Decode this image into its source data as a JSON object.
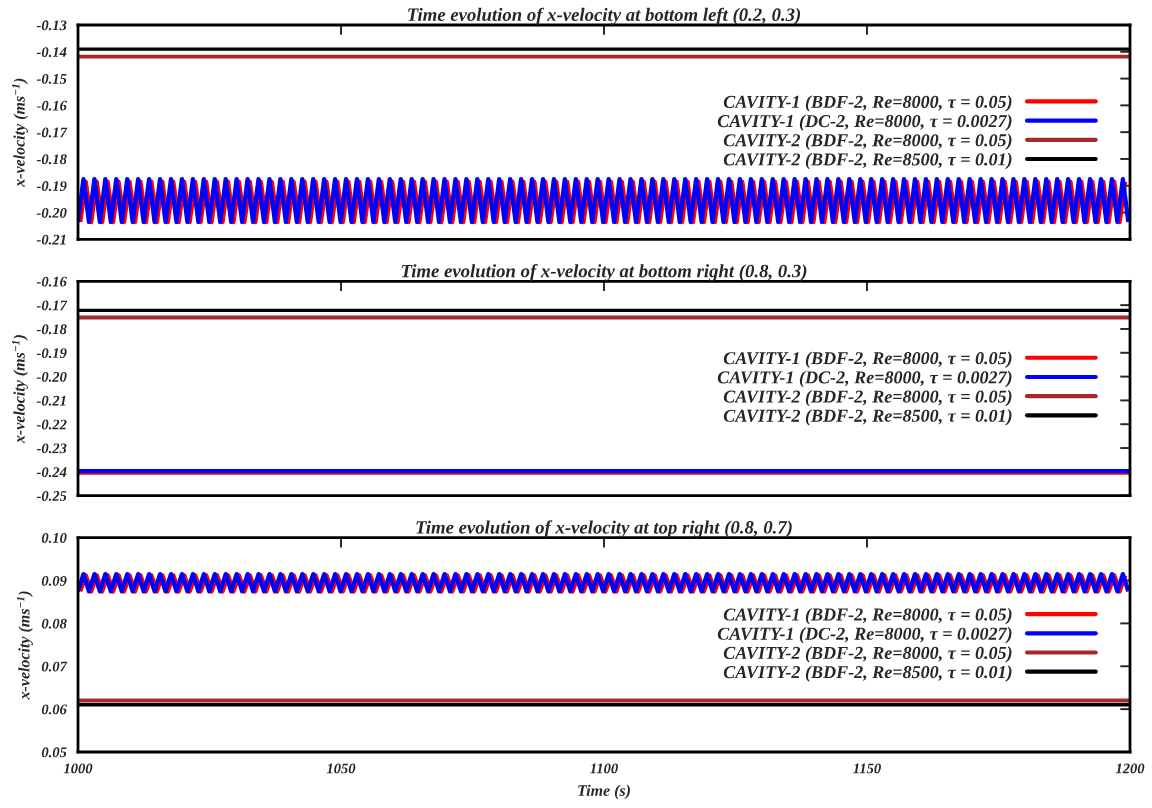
{
  "chart_data": [
    {
      "type": "line",
      "title": "Time evolution of x-velocity at bottom left (0.2, 0.3)",
      "ylabel": "x-velocity (ms$^{−1}$)",
      "xlim": [
        1000,
        1200
      ],
      "xticks": [
        1000,
        1050,
        1100,
        1150,
        1200
      ],
      "ylim": [
        -0.21,
        -0.13
      ],
      "yticks": [
        {
          "value": -0.21,
          "label": "-0.21"
        },
        {
          "value": -0.2,
          "label": "-0.20"
        },
        {
          "value": -0.19,
          "label": "-0.19"
        },
        {
          "value": -0.18,
          "label": "-0.18"
        },
        {
          "value": -0.17,
          "label": "-0.17"
        },
        {
          "value": -0.16,
          "label": "-0.16"
        },
        {
          "value": -0.15,
          "label": "-0.15"
        },
        {
          "value": -0.14,
          "label": "-0.14"
        },
        {
          "value": -0.13,
          "label": "-0.13"
        }
      ],
      "tick_labels": "y",
      "grid": false,
      "legend": "right",
      "series": [
        {
          "name": "CAVITY-1 (BDF-2, Re=8000, τ = 0.05)",
          "color": "#ff0000",
          "x": [
            1000.4,
            1001.44,
            1002.48,
            1003.52,
            1004.56,
            1005.6,
            1006.64,
            1007.68,
            1008.72,
            1009.76,
            1010.8,
            1011.84,
            1012.88,
            1013.92,
            1014.96,
            1016,
            1017.04,
            1018.08,
            1019.12,
            1020.16,
            1021.2,
            1022.24,
            1023.28,
            1024.32,
            1025.36,
            1026.4,
            1027.44,
            1028.48,
            1029.52,
            1030.56,
            1031.6,
            1032.64,
            1033.68,
            1034.72,
            1035.76,
            1036.8,
            1037.84,
            1038.88,
            1039.92,
            1040.96,
            1042,
            1043.04,
            1044.08,
            1045.12,
            1046.16,
            1047.2,
            1048.24,
            1049.28,
            1050.32,
            1051.36,
            1052.4,
            1053.44,
            1054.48,
            1055.52,
            1056.56,
            1057.6,
            1058.64,
            1059.68,
            1060.72,
            1061.76,
            1062.8,
            1063.84,
            1064.88,
            1065.92,
            1066.96,
            1068,
            1069.04,
            1070.08,
            1071.12,
            1072.16,
            1073.2,
            1074.24,
            1075.28,
            1076.32,
            1077.36,
            1078.4,
            1079.44,
            1080.48,
            1081.52,
            1082.56,
            1083.6,
            1084.64,
            1085.68,
            1086.72,
            1087.76,
            1088.8,
            1089.84,
            1090.88,
            1091.92,
            1092.96,
            1094,
            1095.04,
            1096.08,
            1097.12,
            1098.16,
            1099.2,
            1100.24,
            1101.28,
            1102.32,
            1103.36,
            1104.4,
            1105.44,
            1106.48,
            1107.52,
            1108.56,
            1109.6,
            1110.64,
            1111.68,
            1112.72,
            1113.76,
            1114.8,
            1115.84,
            1116.88,
            1117.92,
            1118.96,
            1120,
            1121.04,
            1122.08,
            1123.12,
            1124.16,
            1125.2,
            1126.24,
            1127.28,
            1128.32,
            1129.36,
            1130.4,
            1131.44,
            1132.48,
            1133.52,
            1134.56,
            1135.6,
            1136.64,
            1137.68,
            1138.72,
            1139.76,
            1140.8,
            1141.84,
            1142.88,
            1143.92,
            1144.96,
            1146,
            1147.04,
            1148.08,
            1149.12,
            1150.16,
            1151.2,
            1152.24,
            1153.28,
            1154.32,
            1155.36,
            1156.4,
            1157.44,
            1158.48,
            1159.52,
            1160.56,
            1161.6,
            1162.64,
            1163.68,
            1164.72,
            1165.76,
            1166.8,
            1167.84,
            1168.88,
            1169.92,
            1170.96,
            1172,
            1173.04,
            1174.08,
            1175.12,
            1176.16,
            1177.2,
            1178.24,
            1179.28,
            1180.32,
            1181.36,
            1182.4,
            1183.44,
            1184.48,
            1185.52,
            1186.56,
            1187.6,
            1188.64,
            1189.68,
            1190.72,
            1191.76,
            1192.8,
            1193.84,
            1194.88,
            1195.92,
            1196.96,
            1198,
            1199.04
          ],
          "values": [
            -0.2035,
            -0.1885,
            -0.2035,
            -0.1885,
            -0.2035,
            -0.1885,
            -0.2035,
            -0.1885,
            -0.2035,
            -0.1885,
            -0.2035,
            -0.1885,
            -0.2035,
            -0.1885,
            -0.2035,
            -0.1885,
            -0.2035,
            -0.1885,
            -0.2035,
            -0.1885,
            -0.2035,
            -0.1885,
            -0.2035,
            -0.1885,
            -0.2035,
            -0.1885,
            -0.2035,
            -0.1885,
            -0.2035,
            -0.1885,
            -0.2035,
            -0.1885,
            -0.2035,
            -0.1885,
            -0.2035,
            -0.1885,
            -0.2035,
            -0.1885,
            -0.2035,
            -0.1885,
            -0.2035,
            -0.1885,
            -0.2035,
            -0.1885,
            -0.2035,
            -0.1885,
            -0.2035,
            -0.1885,
            -0.2035,
            -0.1885,
            -0.2035,
            -0.1885,
            -0.2035,
            -0.1885,
            -0.2035,
            -0.1885,
            -0.2035,
            -0.1885,
            -0.2035,
            -0.1885,
            -0.2035,
            -0.1885,
            -0.2035,
            -0.1885,
            -0.2035,
            -0.1885,
            -0.2035,
            -0.1885,
            -0.2035,
            -0.1885,
            -0.2035,
            -0.1885,
            -0.2035,
            -0.1885,
            -0.2035,
            -0.1885,
            -0.2035,
            -0.1885,
            -0.2035,
            -0.1885,
            -0.2035,
            -0.1885,
            -0.2035,
            -0.1885,
            -0.2035,
            -0.1885,
            -0.2035,
            -0.1885,
            -0.2035,
            -0.1885,
            -0.2035,
            -0.1885,
            -0.2035,
            -0.1885,
            -0.2035,
            -0.1885,
            -0.2035,
            -0.1885,
            -0.2035,
            -0.1885,
            -0.2035,
            -0.1885,
            -0.2035,
            -0.1885,
            -0.2035,
            -0.1885,
            -0.2035,
            -0.1885,
            -0.2035,
            -0.1885,
            -0.2035,
            -0.1885,
            -0.2035,
            -0.1885,
            -0.2035,
            -0.1885,
            -0.2035,
            -0.1885,
            -0.2035,
            -0.1885,
            -0.2035,
            -0.1885,
            -0.2035,
            -0.1885,
            -0.2035,
            -0.1885,
            -0.2035,
            -0.1885,
            -0.2035,
            -0.1885,
            -0.2035,
            -0.1885,
            -0.2035,
            -0.1885,
            -0.2035,
            -0.1885,
            -0.2035,
            -0.1885,
            -0.2035,
            -0.1885,
            -0.2035,
            -0.1885,
            -0.2035,
            -0.1885,
            -0.2035,
            -0.1885,
            -0.2035,
            -0.1885,
            -0.2035,
            -0.1885,
            -0.2035,
            -0.1885,
            -0.2035,
            -0.1885,
            -0.2035,
            -0.1885,
            -0.2035,
            -0.1885,
            -0.2035,
            -0.1885,
            -0.2035,
            -0.1885,
            -0.2035,
            -0.1885,
            -0.2035,
            -0.1885,
            -0.2035,
            -0.1885,
            -0.2035,
            -0.1885,
            -0.2035,
            -0.1885,
            -0.2035,
            -0.1885,
            -0.2035,
            -0.1885,
            -0.2035,
            -0.1885,
            -0.2035,
            -0.1885,
            -0.2035,
            -0.1885,
            -0.2035,
            -0.1885,
            -0.2035,
            -0.1885,
            -0.2035,
            -0.1885,
            -0.2035,
            -0.1885,
            -0.2035,
            -0.1885
          ]
        },
        {
          "name": "CAVITY-1 (DC-2, Re=8000, τ = 0.0027)",
          "color": "#0000ff",
          "x": [
            1000,
            1001.04,
            1002.08,
            1003.12,
            1004.16,
            1005.2,
            1006.24,
            1007.28,
            1008.32,
            1009.36,
            1010.4,
            1011.44,
            1012.48,
            1013.52,
            1014.56,
            1015.6,
            1016.64,
            1017.68,
            1018.72,
            1019.76,
            1020.8,
            1021.84,
            1022.88,
            1023.92,
            1024.96,
            1026,
            1027.04,
            1028.08,
            1029.12,
            1030.16,
            1031.2,
            1032.24,
            1033.28,
            1034.32,
            1035.36,
            1036.4,
            1037.44,
            1038.48,
            1039.52,
            1040.56,
            1041.6,
            1042.64,
            1043.68,
            1044.72,
            1045.76,
            1046.8,
            1047.84,
            1048.88,
            1049.92,
            1050.96,
            1052,
            1053.04,
            1054.08,
            1055.12,
            1056.16,
            1057.2,
            1058.24,
            1059.28,
            1060.32,
            1061.36,
            1062.4,
            1063.44,
            1064.48,
            1065.52,
            1066.56,
            1067.6,
            1068.64,
            1069.68,
            1070.72,
            1071.76,
            1072.8,
            1073.84,
            1074.88,
            1075.92,
            1076.96,
            1078,
            1079.04,
            1080.08,
            1081.12,
            1082.16,
            1083.2,
            1084.24,
            1085.28,
            1086.32,
            1087.36,
            1088.4,
            1089.44,
            1090.48,
            1091.52,
            1092.56,
            1093.6,
            1094.64,
            1095.68,
            1096.72,
            1097.76,
            1098.8,
            1099.84,
            1100.88,
            1101.92,
            1102.96,
            1104,
            1105.04,
            1106.08,
            1107.12,
            1108.16,
            1109.2,
            1110.24,
            1111.28,
            1112.32,
            1113.36,
            1114.4,
            1115.44,
            1116.48,
            1117.52,
            1118.56,
            1119.6,
            1120.64,
            1121.68,
            1122.72,
            1123.76,
            1124.8,
            1125.84,
            1126.88,
            1127.92,
            1128.96,
            1130,
            1131.04,
            1132.08,
            1133.12,
            1134.16,
            1135.2,
            1136.24,
            1137.28,
            1138.32,
            1139.36,
            1140.4,
            1141.44,
            1142.48,
            1143.52,
            1144.56,
            1145.6,
            1146.64,
            1147.68,
            1148.72,
            1149.76,
            1150.8,
            1151.84,
            1152.88,
            1153.92,
            1154.96,
            1156,
            1157.04,
            1158.08,
            1159.12,
            1160.16,
            1161.2,
            1162.24,
            1163.28,
            1164.32,
            1165.36,
            1166.4,
            1167.44,
            1168.48,
            1169.52,
            1170.56,
            1171.6,
            1172.64,
            1173.68,
            1174.72,
            1175.76,
            1176.8,
            1177.84,
            1178.88,
            1179.92,
            1180.96,
            1182,
            1183.04,
            1184.08,
            1185.12,
            1186.16,
            1187.2,
            1188.24,
            1189.28,
            1190.32,
            1191.36,
            1192.4,
            1193.44,
            1194.48,
            1195.52,
            1196.56,
            1197.6,
            1198.64,
            1199.68
          ],
          "values": [
            -0.2035,
            -0.1875,
            -0.2035,
            -0.1875,
            -0.2035,
            -0.1875,
            -0.2035,
            -0.1875,
            -0.2035,
            -0.1875,
            -0.2035,
            -0.1875,
            -0.2035,
            -0.1875,
            -0.2035,
            -0.1875,
            -0.2035,
            -0.1875,
            -0.2035,
            -0.1875,
            -0.2035,
            -0.1875,
            -0.2035,
            -0.1875,
            -0.2035,
            -0.1875,
            -0.2035,
            -0.1875,
            -0.2035,
            -0.1875,
            -0.2035,
            -0.1875,
            -0.2035,
            -0.1875,
            -0.2035,
            -0.1875,
            -0.2035,
            -0.1875,
            -0.2035,
            -0.1875,
            -0.2035,
            -0.1875,
            -0.2035,
            -0.1875,
            -0.2035,
            -0.1875,
            -0.2035,
            -0.1875,
            -0.2035,
            -0.1875,
            -0.2035,
            -0.1875,
            -0.2035,
            -0.1875,
            -0.2035,
            -0.1875,
            -0.2035,
            -0.1875,
            -0.2035,
            -0.1875,
            -0.2035,
            -0.1875,
            -0.2035,
            -0.1875,
            -0.2035,
            -0.1875,
            -0.2035,
            -0.1875,
            -0.2035,
            -0.1875,
            -0.2035,
            -0.1875,
            -0.2035,
            -0.1875,
            -0.2035,
            -0.1875,
            -0.2035,
            -0.1875,
            -0.2035,
            -0.1875,
            -0.2035,
            -0.1875,
            -0.2035,
            -0.1875,
            -0.2035,
            -0.1875,
            -0.2035,
            -0.1875,
            -0.2035,
            -0.1875,
            -0.2035,
            -0.1875,
            -0.2035,
            -0.1875,
            -0.2035,
            -0.1875,
            -0.2035,
            -0.1875,
            -0.2035,
            -0.1875,
            -0.2035,
            -0.1875,
            -0.2035,
            -0.1875,
            -0.2035,
            -0.1875,
            -0.2035,
            -0.1875,
            -0.2035,
            -0.1875,
            -0.2035,
            -0.1875,
            -0.2035,
            -0.1875,
            -0.2035,
            -0.1875,
            -0.2035,
            -0.1875,
            -0.2035,
            -0.1875,
            -0.2035,
            -0.1875,
            -0.2035,
            -0.1875,
            -0.2035,
            -0.1875,
            -0.2035,
            -0.1875,
            -0.2035,
            -0.1875,
            -0.2035,
            -0.1875,
            -0.2035,
            -0.1875,
            -0.2035,
            -0.1875,
            -0.2035,
            -0.1875,
            -0.2035,
            -0.1875,
            -0.2035,
            -0.1875,
            -0.2035,
            -0.1875,
            -0.2035,
            -0.1875,
            -0.2035,
            -0.1875,
            -0.2035,
            -0.1875,
            -0.2035,
            -0.1875,
            -0.2035,
            -0.1875,
            -0.2035,
            -0.1875,
            -0.2035,
            -0.1875,
            -0.2035,
            -0.1875,
            -0.2035,
            -0.1875,
            -0.2035,
            -0.1875,
            -0.2035,
            -0.1875,
            -0.2035,
            -0.1875,
            -0.2035,
            -0.1875,
            -0.2035,
            -0.1875,
            -0.2035,
            -0.1875,
            -0.2035,
            -0.1875,
            -0.2035,
            -0.1875,
            -0.2035,
            -0.1875,
            -0.2035,
            -0.1875,
            -0.2035,
            -0.1875,
            -0.2035,
            -0.1875,
            -0.2035,
            -0.1875,
            -0.2035,
            -0.1875,
            -0.2035,
            -0.1875,
            -0.2035
          ]
        },
        {
          "name": "CAVITY-2 (BDF-2, Re=8000, τ = 0.05)",
          "color": "#a52a2a",
          "x": [
            1000,
            1200
          ],
          "values": [
            -0.1418,
            -0.1418
          ]
        },
        {
          "name": "CAVITY-2 (BDF-2, Re=8500, τ = 0.01)",
          "color": "#000000",
          "x": [
            1000,
            1200
          ],
          "values": [
            -0.139,
            -0.139
          ]
        }
      ]
    },
    {
      "type": "line",
      "title": "Time evolution of x-velocity at bottom right (0.8, 0.3)",
      "ylabel": "x-velocity (ms$^{−1}$)",
      "xlim": [
        1000,
        1200
      ],
      "xticks": [
        1000,
        1050,
        1100,
        1150,
        1200
      ],
      "ylim": [
        -0.25,
        -0.16
      ],
      "yticks": [
        {
          "value": -0.25,
          "label": "-0.25"
        },
        {
          "value": -0.24,
          "label": "-0.24"
        },
        {
          "value": -0.23,
          "label": "-0.23"
        },
        {
          "value": -0.22,
          "label": "-0.22"
        },
        {
          "value": -0.21,
          "label": "-0.21"
        },
        {
          "value": -0.2,
          "label": "-0.20"
        },
        {
          "value": -0.19,
          "label": "-0.19"
        },
        {
          "value": -0.18,
          "label": "-0.18"
        },
        {
          "value": -0.17,
          "label": "-0.17"
        },
        {
          "value": -0.16,
          "label": "-0.16"
        }
      ],
      "tick_labels": "y",
      "grid": false,
      "legend": "right",
      "series": [
        {
          "name": "CAVITY-1 (BDF-2, Re=8000, τ = 0.05)",
          "color": "#ff0000",
          "x": [
            1000,
            1200
          ],
          "values": [
            -0.2402,
            -0.2402
          ]
        },
        {
          "name": "CAVITY-1 (DC-2, Re=8000, τ = 0.0027)",
          "color": "#0000ff",
          "x": [
            1000,
            1200
          ],
          "values": [
            -0.2397,
            -0.2397
          ]
        },
        {
          "name": "CAVITY-2 (BDF-2, Re=8000, τ = 0.05)",
          "color": "#a52a2a",
          "x": [
            1000,
            1200
          ],
          "values": [
            -0.1752,
            -0.1752
          ]
        },
        {
          "name": "CAVITY-2 (BDF-2, Re=8500, τ = 0.01)",
          "color": "#000000",
          "x": [
            1000,
            1200
          ],
          "values": [
            -0.1722,
            -0.1722
          ]
        }
      ]
    },
    {
      "type": "line",
      "title": "Time evolution of x-velocity at top right (0.8, 0.7)",
      "xlabel": "Time (s)",
      "ylabel": "x-velocity (ms$^{−1}$)",
      "xlim": [
        1000,
        1200
      ],
      "xticks": [
        1000,
        1050,
        1100,
        1150,
        1200
      ],
      "ylim": [
        0.05,
        0.1
      ],
      "yticks": [
        {
          "value": 0.05,
          "label": "0.05"
        },
        {
          "value": 0.06,
          "label": "0.06"
        },
        {
          "value": 0.07,
          "label": "0.07"
        },
        {
          "value": 0.08,
          "label": "0.08"
        },
        {
          "value": 0.09,
          "label": "0.09"
        },
        {
          "value": 0.1,
          "label": "0.10"
        }
      ],
      "grid": false,
      "legend": "right",
      "series": [
        {
          "name": "CAVITY-1 (BDF-2, Re=8000, τ = 0.05)",
          "color": "#ff0000",
          "x": [
            1000.4,
            1001.44,
            1002.48,
            1003.52,
            1004.56,
            1005.6,
            1006.64,
            1007.68,
            1008.72,
            1009.76,
            1010.8,
            1011.84,
            1012.88,
            1013.92,
            1014.96,
            1016,
            1017.04,
            1018.08,
            1019.12,
            1020.16,
            1021.2,
            1022.24,
            1023.28,
            1024.32,
            1025.36,
            1026.4,
            1027.44,
            1028.48,
            1029.52,
            1030.56,
            1031.6,
            1032.64,
            1033.68,
            1034.72,
            1035.76,
            1036.8,
            1037.84,
            1038.88,
            1039.92,
            1040.96,
            1042,
            1043.04,
            1044.08,
            1045.12,
            1046.16,
            1047.2,
            1048.24,
            1049.28,
            1050.32,
            1051.36,
            1052.4,
            1053.44,
            1054.48,
            1055.52,
            1056.56,
            1057.6,
            1058.64,
            1059.68,
            1060.72,
            1061.76,
            1062.8,
            1063.84,
            1064.88,
            1065.92,
            1066.96,
            1068,
            1069.04,
            1070.08,
            1071.12,
            1072.16,
            1073.2,
            1074.24,
            1075.28,
            1076.32,
            1077.36,
            1078.4,
            1079.44,
            1080.48,
            1081.52,
            1082.56,
            1083.6,
            1084.64,
            1085.68,
            1086.72,
            1087.76,
            1088.8,
            1089.84,
            1090.88,
            1091.92,
            1092.96,
            1094,
            1095.04,
            1096.08,
            1097.12,
            1098.16,
            1099.2,
            1100.24,
            1101.28,
            1102.32,
            1103.36,
            1104.4,
            1105.44,
            1106.48,
            1107.52,
            1108.56,
            1109.6,
            1110.64,
            1111.68,
            1112.72,
            1113.76,
            1114.8,
            1115.84,
            1116.88,
            1117.92,
            1118.96,
            1120,
            1121.04,
            1122.08,
            1123.12,
            1124.16,
            1125.2,
            1126.24,
            1127.28,
            1128.32,
            1129.36,
            1130.4,
            1131.44,
            1132.48,
            1133.52,
            1134.56,
            1135.6,
            1136.64,
            1137.68,
            1138.72,
            1139.76,
            1140.8,
            1141.84,
            1142.88,
            1143.92,
            1144.96,
            1146,
            1147.04,
            1148.08,
            1149.12,
            1150.16,
            1151.2,
            1152.24,
            1153.28,
            1154.32,
            1155.36,
            1156.4,
            1157.44,
            1158.48,
            1159.52,
            1160.56,
            1161.6,
            1162.64,
            1163.68,
            1164.72,
            1165.76,
            1166.8,
            1167.84,
            1168.88,
            1169.92,
            1170.96,
            1172,
            1173.04,
            1174.08,
            1175.12,
            1176.16,
            1177.2,
            1178.24,
            1179.28,
            1180.32,
            1181.36,
            1182.4,
            1183.44,
            1184.48,
            1185.52,
            1186.56,
            1187.6,
            1188.64,
            1189.68,
            1190.72,
            1191.76,
            1192.8,
            1193.84,
            1194.88,
            1195.92,
            1196.96,
            1198,
            1199.04
          ],
          "values": [
            0.0875,
            0.0912,
            0.0875,
            0.0912,
            0.0875,
            0.0912,
            0.0875,
            0.0912,
            0.0875,
            0.0912,
            0.0875,
            0.0912,
            0.0875,
            0.0912,
            0.0875,
            0.0912,
            0.0875,
            0.0912,
            0.0875,
            0.0912,
            0.0875,
            0.0912,
            0.0875,
            0.0912,
            0.0875,
            0.0912,
            0.0875,
            0.0912,
            0.0875,
            0.0912,
            0.0875,
            0.0912,
            0.0875,
            0.0912,
            0.0875,
            0.0912,
            0.0875,
            0.0912,
            0.0875,
            0.0912,
            0.0875,
            0.0912,
            0.0875,
            0.0912,
            0.0875,
            0.0912,
            0.0875,
            0.0912,
            0.0875,
            0.0912,
            0.0875,
            0.0912,
            0.0875,
            0.0912,
            0.0875,
            0.0912,
            0.0875,
            0.0912,
            0.0875,
            0.0912,
            0.0875,
            0.0912,
            0.0875,
            0.0912,
            0.0875,
            0.0912,
            0.0875,
            0.0912,
            0.0875,
            0.0912,
            0.0875,
            0.0912,
            0.0875,
            0.0912,
            0.0875,
            0.0912,
            0.0875,
            0.0912,
            0.0875,
            0.0912,
            0.0875,
            0.0912,
            0.0875,
            0.0912,
            0.0875,
            0.0912,
            0.0875,
            0.0912,
            0.0875,
            0.0912,
            0.0875,
            0.0912,
            0.0875,
            0.0912,
            0.0875,
            0.0912,
            0.0875,
            0.0912,
            0.0875,
            0.0912,
            0.0875,
            0.0912,
            0.0875,
            0.0912,
            0.0875,
            0.0912,
            0.0875,
            0.0912,
            0.0875,
            0.0912,
            0.0875,
            0.0912,
            0.0875,
            0.0912,
            0.0875,
            0.0912,
            0.0875,
            0.0912,
            0.0875,
            0.0912,
            0.0875,
            0.0912,
            0.0875,
            0.0912,
            0.0875,
            0.0912,
            0.0875,
            0.0912,
            0.0875,
            0.0912,
            0.0875,
            0.0912,
            0.0875,
            0.0912,
            0.0875,
            0.0912,
            0.0875,
            0.0912,
            0.0875,
            0.0912,
            0.0875,
            0.0912,
            0.0875,
            0.0912,
            0.0875,
            0.0912,
            0.0875,
            0.0912,
            0.0875,
            0.0912,
            0.0875,
            0.0912,
            0.0875,
            0.0912,
            0.0875,
            0.0912,
            0.0875,
            0.0912,
            0.0875,
            0.0912,
            0.0875,
            0.0912,
            0.0875,
            0.0912,
            0.0875,
            0.0912,
            0.0875,
            0.0912,
            0.0875,
            0.0912,
            0.0875,
            0.0912,
            0.0875,
            0.0912,
            0.0875,
            0.0912,
            0.0875,
            0.0912,
            0.0875,
            0.0912,
            0.0875,
            0.0912,
            0.0875,
            0.0912,
            0.0875,
            0.0912,
            0.0875,
            0.0912,
            0.0875,
            0.0912,
            0.0875,
            0.0912
          ]
        },
        {
          "name": "CAVITY-1 (DC-2, Re=8000, τ = 0.0027)",
          "color": "#0000ff",
          "x": [
            1000,
            1001.04,
            1002.08,
            1003.12,
            1004.16,
            1005.2,
            1006.24,
            1007.28,
            1008.32,
            1009.36,
            1010.4,
            1011.44,
            1012.48,
            1013.52,
            1014.56,
            1015.6,
            1016.64,
            1017.68,
            1018.72,
            1019.76,
            1020.8,
            1021.84,
            1022.88,
            1023.92,
            1024.96,
            1026,
            1027.04,
            1028.08,
            1029.12,
            1030.16,
            1031.2,
            1032.24,
            1033.28,
            1034.32,
            1035.36,
            1036.4,
            1037.44,
            1038.48,
            1039.52,
            1040.56,
            1041.6,
            1042.64,
            1043.68,
            1044.72,
            1045.76,
            1046.8,
            1047.84,
            1048.88,
            1049.92,
            1050.96,
            1052,
            1053.04,
            1054.08,
            1055.12,
            1056.16,
            1057.2,
            1058.24,
            1059.28,
            1060.32,
            1061.36,
            1062.4,
            1063.44,
            1064.48,
            1065.52,
            1066.56,
            1067.6,
            1068.64,
            1069.68,
            1070.72,
            1071.76,
            1072.8,
            1073.84,
            1074.88,
            1075.92,
            1076.96,
            1078,
            1079.04,
            1080.08,
            1081.12,
            1082.16,
            1083.2,
            1084.24,
            1085.28,
            1086.32,
            1087.36,
            1088.4,
            1089.44,
            1090.48,
            1091.52,
            1092.56,
            1093.6,
            1094.64,
            1095.68,
            1096.72,
            1097.76,
            1098.8,
            1099.84,
            1100.88,
            1101.92,
            1102.96,
            1104,
            1105.04,
            1106.08,
            1107.12,
            1108.16,
            1109.2,
            1110.24,
            1111.28,
            1112.32,
            1113.36,
            1114.4,
            1115.44,
            1116.48,
            1117.52,
            1118.56,
            1119.6,
            1120.64,
            1121.68,
            1122.72,
            1123.76,
            1124.8,
            1125.84,
            1126.88,
            1127.92,
            1128.96,
            1130,
            1131.04,
            1132.08,
            1133.12,
            1134.16,
            1135.2,
            1136.24,
            1137.28,
            1138.32,
            1139.36,
            1140.4,
            1141.44,
            1142.48,
            1143.52,
            1144.56,
            1145.6,
            1146.64,
            1147.68,
            1148.72,
            1149.76,
            1150.8,
            1151.84,
            1152.88,
            1153.92,
            1154.96,
            1156,
            1157.04,
            1158.08,
            1159.12,
            1160.16,
            1161.2,
            1162.24,
            1163.28,
            1164.32,
            1165.36,
            1166.4,
            1167.44,
            1168.48,
            1169.52,
            1170.56,
            1171.6,
            1172.64,
            1173.68,
            1174.72,
            1175.76,
            1176.8,
            1177.84,
            1178.88,
            1179.92,
            1180.96,
            1182,
            1183.04,
            1184.08,
            1185.12,
            1186.16,
            1187.2,
            1188.24,
            1189.28,
            1190.32,
            1191.36,
            1192.4,
            1193.44,
            1194.48,
            1195.52,
            1196.56,
            1197.6,
            1198.64,
            1199.68
          ],
          "values": [
            0.0875,
            0.0915,
            0.0875,
            0.0915,
            0.0875,
            0.0915,
            0.0875,
            0.0915,
            0.0875,
            0.0915,
            0.0875,
            0.0915,
            0.0875,
            0.0915,
            0.0875,
            0.0915,
            0.0875,
            0.0915,
            0.0875,
            0.0915,
            0.0875,
            0.0915,
            0.0875,
            0.0915,
            0.0875,
            0.0915,
            0.0875,
            0.0915,
            0.0875,
            0.0915,
            0.0875,
            0.0915,
            0.0875,
            0.0915,
            0.0875,
            0.0915,
            0.0875,
            0.0915,
            0.0875,
            0.0915,
            0.0875,
            0.0915,
            0.0875,
            0.0915,
            0.0875,
            0.0915,
            0.0875,
            0.0915,
            0.0875,
            0.0915,
            0.0875,
            0.0915,
            0.0875,
            0.0915,
            0.0875,
            0.0915,
            0.0875,
            0.0915,
            0.0875,
            0.0915,
            0.0875,
            0.0915,
            0.0875,
            0.0915,
            0.0875,
            0.0915,
            0.0875,
            0.0915,
            0.0875,
            0.0915,
            0.0875,
            0.0915,
            0.0875,
            0.0915,
            0.0875,
            0.0915,
            0.0875,
            0.0915,
            0.0875,
            0.0915,
            0.0875,
            0.0915,
            0.0875,
            0.0915,
            0.0875,
            0.0915,
            0.0875,
            0.0915,
            0.0875,
            0.0915,
            0.0875,
            0.0915,
            0.0875,
            0.0915,
            0.0875,
            0.0915,
            0.0875,
            0.0915,
            0.0875,
            0.0915,
            0.0875,
            0.0915,
            0.0875,
            0.0915,
            0.0875,
            0.0915,
            0.0875,
            0.0915,
            0.0875,
            0.0915,
            0.0875,
            0.0915,
            0.0875,
            0.0915,
            0.0875,
            0.0915,
            0.0875,
            0.0915,
            0.0875,
            0.0915,
            0.0875,
            0.0915,
            0.0875,
            0.0915,
            0.0875,
            0.0915,
            0.0875,
            0.0915,
            0.0875,
            0.0915,
            0.0875,
            0.0915,
            0.0875,
            0.0915,
            0.0875,
            0.0915,
            0.0875,
            0.0915,
            0.0875,
            0.0915,
            0.0875,
            0.0915,
            0.0875,
            0.0915,
            0.0875,
            0.0915,
            0.0875,
            0.0915,
            0.0875,
            0.0915,
            0.0875,
            0.0915,
            0.0875,
            0.0915,
            0.0875,
            0.0915,
            0.0875,
            0.0915,
            0.0875,
            0.0915,
            0.0875,
            0.0915,
            0.0875,
            0.0915,
            0.0875,
            0.0915,
            0.0875,
            0.0915,
            0.0875,
            0.0915,
            0.0875,
            0.0915,
            0.0875,
            0.0915,
            0.0875,
            0.0915,
            0.0875,
            0.0915,
            0.0875,
            0.0915,
            0.0875,
            0.0915,
            0.0875,
            0.0915,
            0.0875,
            0.0915,
            0.0875,
            0.0915,
            0.0875,
            0.0915,
            0.0875,
            0.0915,
            0.0875
          ]
        },
        {
          "name": "CAVITY-2 (BDF-2, Re=8000, τ = 0.05)",
          "color": "#a52a2a",
          "x": [
            1000,
            1200
          ],
          "values": [
            0.062,
            0.062
          ]
        },
        {
          "name": "CAVITY-2 (BDF-2, Re=8500, τ = 0.01)",
          "color": "#000000",
          "x": [
            1000,
            1200
          ],
          "values": [
            0.061,
            0.061
          ]
        }
      ]
    }
  ]
}
